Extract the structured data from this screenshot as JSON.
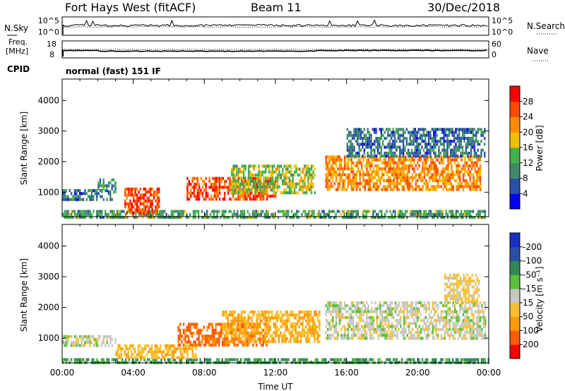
{
  "header": {
    "station": "Fort Hays West (fitACF)",
    "beam": "Beam 11",
    "date": "30/Dec/2018"
  },
  "aux": {
    "nsky_label": "N.Sky",
    "nsearch_label": "N.Search",
    "freq_label_1": "Freq.",
    "freq_label_2": "[MHz]",
    "nave_label": "Nave",
    "cpid_label": "CPID",
    "mode_text": "normal (fast) 151 IF",
    "noise_ticks_left": [
      "10^5",
      "10^0"
    ],
    "noise_ticks_right": [
      "10^5",
      "10^0"
    ],
    "freq_ticks": [
      "18",
      "8"
    ],
    "nave_ticks": [
      "60",
      "0"
    ]
  },
  "colors": {
    "power": [
      "#0000ff",
      "#2a50a8",
      "#3e8a6a",
      "#43b04a",
      "#f0c000",
      "#ff8c00",
      "#ff4a00",
      "#ff0000"
    ],
    "velocity": [
      "#ff0000",
      "#ff5a00",
      "#ff9a00",
      "#f8c030",
      "#c8c8c0",
      "#58c038",
      "#2f8a58",
      "#2850a8",
      "#1830c0"
    ]
  },
  "chart_data": [
    {
      "type": "heatmap",
      "name": "power",
      "xlabel": "",
      "ylabel": "Slant Range [km]",
      "xlim": [
        "00:00",
        "24:00"
      ],
      "ylim": [
        200,
        4700
      ],
      "yticks": [
        "1000",
        "2000",
        "3000",
        "4000"
      ],
      "colorbar": {
        "label": "Power [dB]",
        "ticks": [
          "4",
          "8",
          "12",
          "16",
          "20",
          "24",
          "28"
        ],
        "range": [
          0,
          32
        ]
      },
      "echo_regions": [
        {
          "t_start": 0.0,
          "t_end": 23.8,
          "r_min": 200,
          "r_max": 420,
          "level_db": 12
        },
        {
          "t_start": 0.0,
          "t_end": 2.8,
          "r_min": 800,
          "r_max": 1100,
          "level_db": 8
        },
        {
          "t_start": 2.0,
          "t_end": 3.0,
          "r_min": 1000,
          "r_max": 1450,
          "level_db": 10
        },
        {
          "t_start": 3.5,
          "t_end": 5.5,
          "r_min": 350,
          "r_max": 1150,
          "level_db": 26
        },
        {
          "t_start": 7.0,
          "t_end": 12.0,
          "r_min": 750,
          "r_max": 1500,
          "level_db": 26
        },
        {
          "t_start": 9.5,
          "t_end": 14.2,
          "r_min": 950,
          "r_max": 1900,
          "level_db": 16
        },
        {
          "t_start": 14.8,
          "t_end": 23.5,
          "r_min": 1050,
          "r_max": 2200,
          "level_db": 22
        },
        {
          "t_start": 16.0,
          "t_end": 23.8,
          "r_min": 2200,
          "r_max": 3100,
          "level_db": 8
        }
      ]
    },
    {
      "type": "heatmap",
      "name": "velocity",
      "xlabel": "Time UT",
      "ylabel": "Slant Range [km]",
      "xlim": [
        "00:00",
        "24:00"
      ],
      "ylim": [
        200,
        4700
      ],
      "xticks": [
        "00:00",
        "04:00",
        "08:00",
        "12:00",
        "16:00",
        "20:00",
        "00:00"
      ],
      "yticks": [
        "1000",
        "2000",
        "3000",
        "4000"
      ],
      "colorbar": {
        "label": "Velocity [m s⁻¹]",
        "ticks": [
          "200",
          "100",
          "50",
          "15",
          "-15",
          "-50",
          "-100",
          "-200"
        ],
        "range": [
          -250,
          250
        ]
      },
      "echo_regions": [
        {
          "t_start": 0.0,
          "t_end": 24.0,
          "r_min": 200,
          "r_max": 350,
          "velocity": 60
        },
        {
          "t_start": 0.0,
          "t_end": 3.0,
          "r_min": 800,
          "r_max": 1100,
          "velocity": 0
        },
        {
          "t_start": 3.0,
          "t_end": 7.5,
          "r_min": 400,
          "r_max": 800,
          "velocity": -40
        },
        {
          "t_start": 6.5,
          "t_end": 11.5,
          "r_min": 750,
          "r_max": 1500,
          "velocity": -110
        },
        {
          "t_start": 9.0,
          "t_end": 14.5,
          "r_min": 900,
          "r_max": 1900,
          "velocity": -50
        },
        {
          "t_start": 14.8,
          "t_end": 23.8,
          "r_min": 1000,
          "r_max": 2200,
          "velocity": 0
        },
        {
          "t_start": 21.5,
          "t_end": 23.5,
          "r_min": 2200,
          "r_max": 3100,
          "velocity": -20
        }
      ]
    }
  ]
}
